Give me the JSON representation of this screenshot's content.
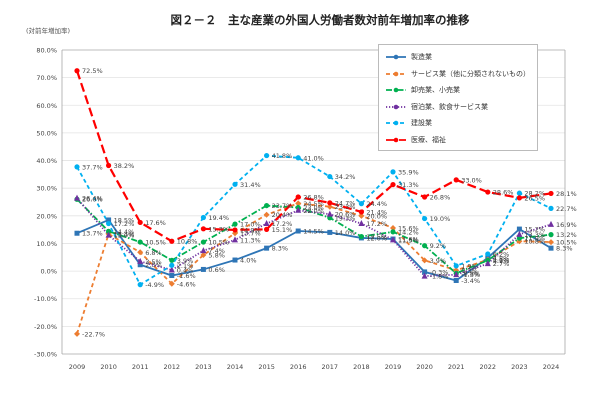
{
  "chart_data": {
    "type": "line",
    "title": "図２－２　主な産業の外国人労働者数対前年増加率の推移",
    "ylabel": "(対前年増加率)",
    "xlabel": "",
    "ylim": [
      -30,
      80
    ],
    "ytick_step": 10,
    "yticks": [
      "80.0%",
      "70.0%",
      "60.0%",
      "50.0%",
      "40.0%",
      "30.0%",
      "20.0%",
      "10.0%",
      "0.0%",
      "-10.0%",
      "-20.0%",
      "-30.0%"
    ],
    "grid": true,
    "legend_position": "top-right",
    "categories": [
      "2009",
      "2010",
      "2011",
      "2012",
      "2013",
      "2014",
      "2015",
      "2016",
      "2017",
      "2018",
      "2019",
      "2020",
      "2021",
      "2022",
      "2023",
      "2024"
    ],
    "series": [
      {
        "name": "製造業",
        "color": "#2e75b6",
        "dash": "solid",
        "marker": "square",
        "values": [
          13.7,
          18.5,
          2.3,
          -1.6,
          0.6,
          4.0,
          8.3,
          14.5,
          14.0,
          12.0,
          11.6,
          -0.3,
          -3.4,
          4.8,
          15.2,
          8.3
        ]
      },
      {
        "name": "サービス業（他に分類されないもの）",
        "color": "#ed7d31",
        "dash": "dash",
        "marker": "diamond",
        "values": [
          -22.7,
          13.4,
          6.8,
          -4.6,
          5.8,
          13.7,
          20.4,
          24.5,
          23.3,
          20.0,
          15.6,
          3.9,
          0.3,
          4.1,
          10.8,
          10.5
        ]
      },
      {
        "name": "卸売業、小売業",
        "color": "#00b050",
        "dash": "dashdot",
        "marker": "circle",
        "values": [
          26.0,
          14.4,
          10.5,
          3.9,
          10.5,
          17.0,
          23.7,
          23.0,
          19.3,
          12.5,
          14.2,
          9.2,
          -0.8,
          3.9,
          11.9,
          13.2
        ]
      },
      {
        "name": "宿泊業、飲食サービス業",
        "color": "#7030a0",
        "dash": "dot",
        "marker": "triangle",
        "values": [
          26.4,
          13.0,
          3.5,
          0.4,
          7.4,
          11.3,
          17.2,
          22.0,
          20.6,
          17.2,
          11.3,
          -1.8,
          -1.3,
          2.7,
          13.3,
          16.9
        ]
      },
      {
        "name": "建設業",
        "color": "#00b0f0",
        "dash": "dash",
        "marker": "circle",
        "values": [
          37.7,
          17.2,
          -4.9,
          2.1,
          19.4,
          31.4,
          41.8,
          41.0,
          34.2,
          24.4,
          35.9,
          19.0,
          1.9,
          6.2,
          28.2,
          22.7
        ]
      },
      {
        "name": "医療、福祉",
        "color": "#ff0000",
        "dash": "longdash",
        "marker": "circle",
        "values": [
          72.5,
          38.2,
          17.6,
          10.8,
          15.3,
          14.9,
          15.1,
          26.8,
          24.7,
          21.4,
          31.3,
          26.8,
          33.0,
          28.6,
          26.5,
          28.1
        ]
      }
    ]
  }
}
